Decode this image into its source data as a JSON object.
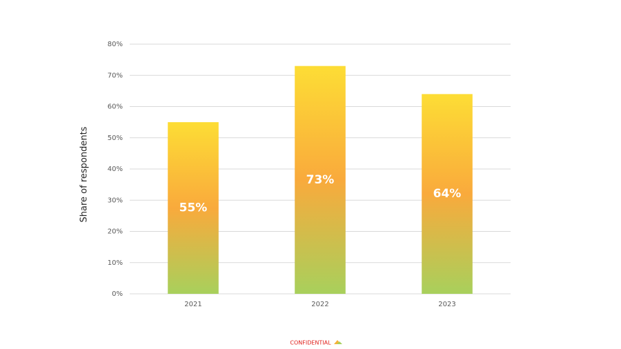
{
  "chart_data": {
    "type": "bar",
    "y_label": "Share of respondents",
    "categories": [
      "2021",
      "2022",
      "2023"
    ],
    "values": [
      55,
      73,
      64
    ],
    "value_labels": [
      "55%",
      "73%",
      "64%"
    ],
    "colors": [
      "#fddd35",
      "#f9aa3c",
      "#a8d05c"
    ],
    "ylim": [
      0,
      80
    ],
    "yticks": [
      {
        "value": 0,
        "label": "0%"
      },
      {
        "value": 10,
        "label": "10%"
      },
      {
        "value": 20,
        "label": "20%"
      },
      {
        "value": 30,
        "label": "30%"
      },
      {
        "value": 40,
        "label": "40%"
      },
      {
        "value": 50,
        "label": "50%"
      },
      {
        "value": 60,
        "label": "60%"
      },
      {
        "value": 70,
        "label": "70%"
      },
      {
        "value": 80,
        "label": "80%"
      }
    ],
    "grid": true
  },
  "footer": {
    "text": "CONFIDENTIAL"
  }
}
